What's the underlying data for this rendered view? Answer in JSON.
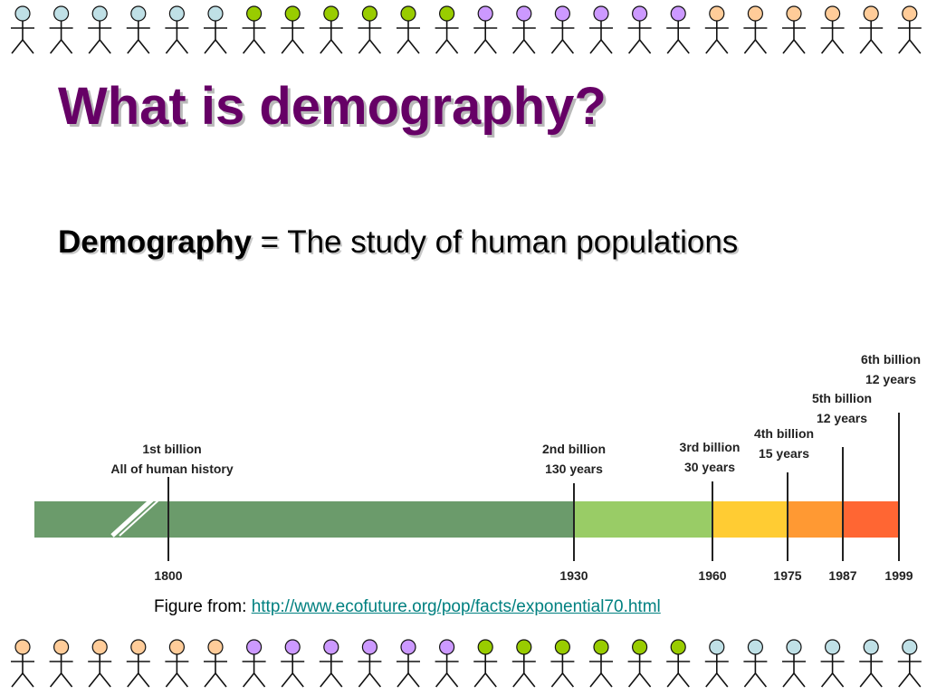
{
  "slide": {
    "title": "What is demography?",
    "definition": {
      "term": "Demography",
      "separator": " = ",
      "text": "The study of human populations"
    },
    "caption": {
      "prefix": "Figure from: ",
      "link_text": "http://www.ecofuture.org/pop/facts/exponential70.html"
    }
  },
  "border": {
    "top_colors": [
      "#bfe0e6",
      "#bfe0e6",
      "#bfe0e6",
      "#bfe0e6",
      "#bfe0e6",
      "#bfe0e6",
      "#99cc00",
      "#99cc00",
      "#99cc00",
      "#99cc00",
      "#99cc00",
      "#99cc00",
      "#cc99ff",
      "#cc99ff",
      "#cc99ff",
      "#cc99ff",
      "#cc99ff",
      "#cc99ff",
      "#ffcc99",
      "#ffcc99",
      "#ffcc99",
      "#ffcc99",
      "#ffcc99",
      "#ffcc99"
    ],
    "bottom_colors": [
      "#ffcc99",
      "#ffcc99",
      "#ffcc99",
      "#ffcc99",
      "#ffcc99",
      "#ffcc99",
      "#cc99ff",
      "#cc99ff",
      "#cc99ff",
      "#cc99ff",
      "#cc99ff",
      "#cc99ff",
      "#99cc00",
      "#99cc00",
      "#99cc00",
      "#99cc00",
      "#99cc00",
      "#99cc00",
      "#bfe0e6",
      "#bfe0e6",
      "#bfe0e6",
      "#bfe0e6",
      "#bfe0e6",
      "#bfe0e6"
    ],
    "figure_icon": "stick-figure-icon"
  },
  "timeline": {
    "segment_colors": [
      "#6b9b6b",
      "#99cc66",
      "#ffcc33",
      "#ff9933",
      "#ff6633"
    ],
    "milestones": [
      {
        "year": "1800",
        "label1": "1st billion",
        "label2": "All of human history"
      },
      {
        "year": "1930",
        "label1": "2nd billion",
        "label2": "130 years"
      },
      {
        "year": "1960",
        "label1": "3rd billion",
        "label2": "30 years"
      },
      {
        "year": "1975",
        "label1": "4th billion",
        "label2": "15 years"
      },
      {
        "year": "1987",
        "label1": "5th billion",
        "label2": "12 years"
      },
      {
        "year": "1999",
        "label1": "6th billion",
        "label2": "12 years"
      }
    ]
  }
}
